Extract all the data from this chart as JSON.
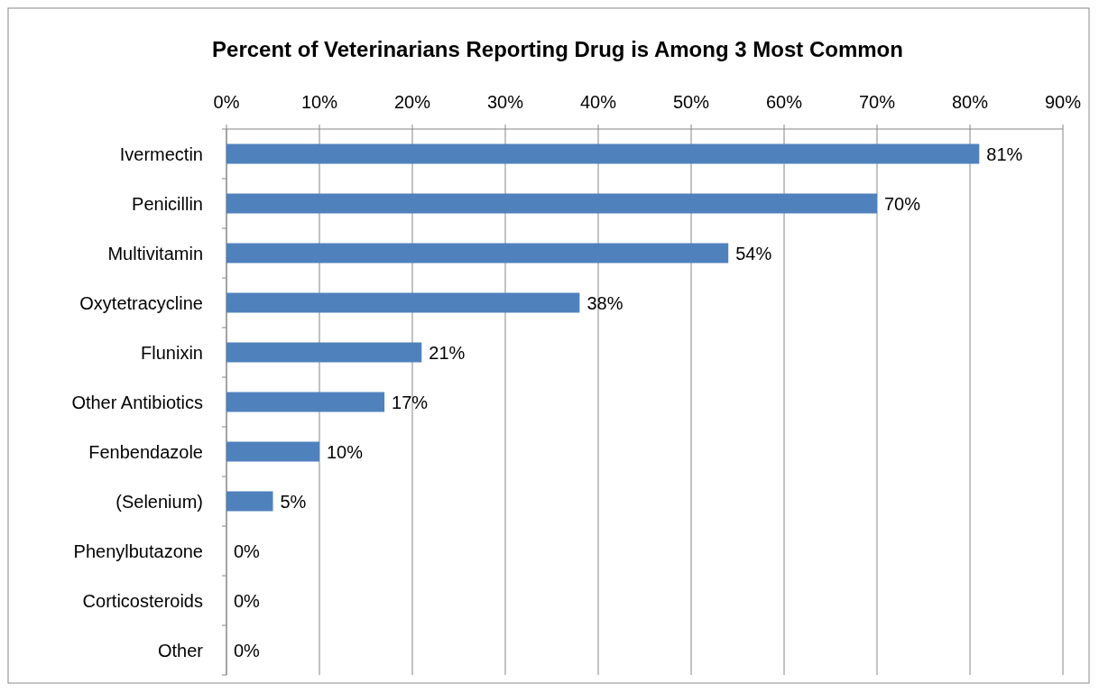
{
  "chart_data": {
    "type": "bar",
    "orientation": "horizontal",
    "title": "Percent of Veterinarians Reporting Drug is Among 3 Most Common",
    "categories": [
      "Ivermectin",
      "Penicillin",
      "Multivitamin",
      "Oxytetracycline",
      "Flunixin",
      "Other Antibiotics",
      "Fenbendazole",
      "(Selenium)",
      "Phenylbutazone",
      "Corticosteroids",
      "Other"
    ],
    "values": [
      81,
      70,
      54,
      38,
      21,
      17,
      10,
      5,
      0,
      0,
      0
    ],
    "value_labels": [
      "81%",
      "70%",
      "54%",
      "38%",
      "21%",
      "17%",
      "10%",
      "5%",
      "0%",
      "0%",
      "0%"
    ],
    "color": "#4f81bd",
    "xlim": [
      0,
      90
    ],
    "xticks": [
      {
        "value": 0,
        "label": "0%"
      },
      {
        "value": 10,
        "label": "10%"
      },
      {
        "value": 20,
        "label": "20%"
      },
      {
        "value": 30,
        "label": "30%"
      },
      {
        "value": 40,
        "label": "40%"
      },
      {
        "value": 50,
        "label": "50%"
      },
      {
        "value": 60,
        "label": "60%"
      },
      {
        "value": 70,
        "label": "70%"
      },
      {
        "value": 80,
        "label": "80%"
      },
      {
        "value": 90,
        "label": "90%"
      }
    ],
    "grid": "x"
  }
}
